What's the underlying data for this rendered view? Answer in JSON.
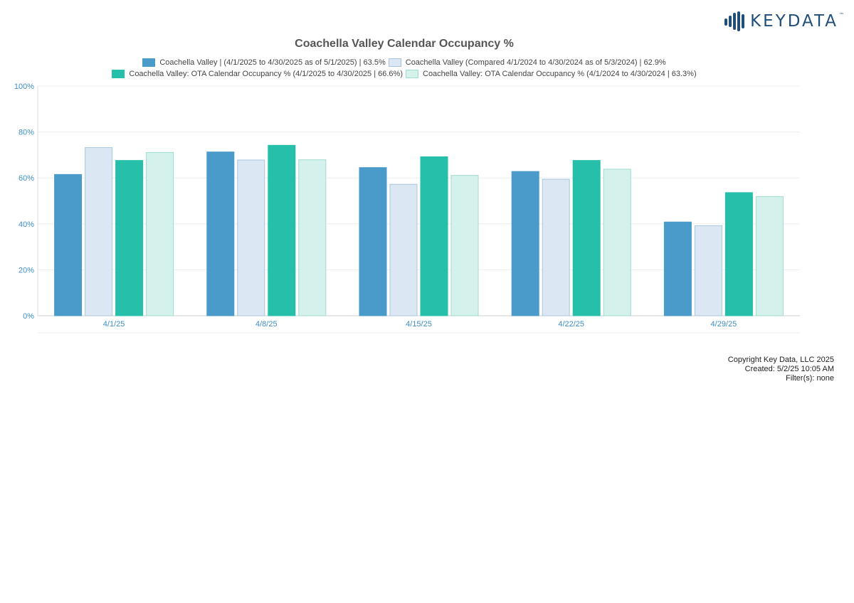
{
  "brand": {
    "name": "KEYDATA",
    "tm": "™",
    "color": "#1f4e79"
  },
  "chart_data": {
    "type": "bar",
    "title": "Coachella Valley Calendar Occupancy %",
    "xlabel": "",
    "ylabel": "",
    "categories": [
      "4/1/25",
      "4/8/25",
      "4/15/25",
      "4/22/25",
      "4/29/25"
    ],
    "ylim": [
      0,
      100
    ],
    "yticks": [
      0,
      20,
      40,
      60,
      80,
      100
    ],
    "ytick_labels": [
      "0%",
      "20%",
      "40%",
      "60%",
      "80%",
      "100%"
    ],
    "grid": true,
    "legend_position": "top",
    "series": [
      {
        "name": "Coachella Valley | (4/1/2025 to 4/30/2025 as of 5/1/2025) | 63.5%",
        "color": "#4a9aca",
        "border": "#4a9aca",
        "values": [
          61.5,
          71.3,
          64.5,
          62.8,
          40.8
        ]
      },
      {
        "name": "Coachella Valley (Compared 4/1/2024 to 4/30/2024 as of 5/3/2024) | 62.9%",
        "color": "#dbe8f4",
        "border": "#a8c6de",
        "values": [
          73.2,
          67.8,
          57.2,
          59.4,
          39.2
        ]
      },
      {
        "name": "Coachella Valley: OTA Calendar Occupancy % (4/1/2025 to 4/30/2025 | 66.6%)",
        "color": "#26bfa9",
        "border": "#26bfa9",
        "values": [
          67.6,
          74.2,
          69.2,
          67.6,
          53.6
        ]
      },
      {
        "name": "Coachella Valley: OTA Calendar Occupancy % (4/1/2024 to 4/30/2024 | 63.3%)",
        "color": "#d5f1ec",
        "border": "#9fdccf",
        "values": [
          71.1,
          67.9,
          61.1,
          63.8,
          51.9
        ]
      }
    ]
  },
  "footer": {
    "copyright": "Copyright Key Data, LLC 2025",
    "created": "Created: 5/2/25 10:05 AM",
    "filters": "Filter(s): none"
  }
}
